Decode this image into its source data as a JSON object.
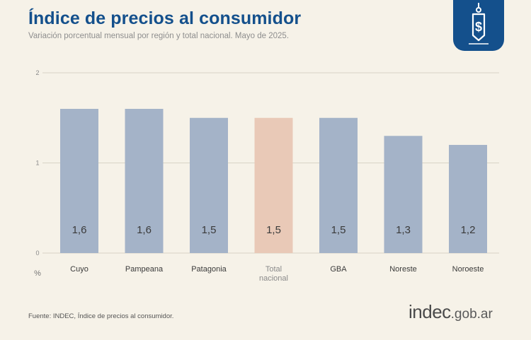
{
  "header": {
    "title": "Índice de precios al consumidor",
    "subtitle": "Variación porcentual mensual por región y total nacional. Mayo de 2025."
  },
  "icons": {
    "badge": "price-tag-dollar-icon"
  },
  "colors": {
    "bar": "#a4b3c8",
    "highlight": "#e9c9b7",
    "grid": "#d8d3c6",
    "text": "#3a3a3a"
  },
  "chart_data": {
    "type": "bar",
    "categories": [
      "Cuyo",
      "Pampeana",
      "Patagonia",
      "Total nacional",
      "GBA",
      "Noreste",
      "Noroeste"
    ],
    "category_lines": [
      [
        "Cuyo"
      ],
      [
        "Pampeana"
      ],
      [
        "Patagonia"
      ],
      [
        "Total",
        "nacional"
      ],
      [
        "GBA"
      ],
      [
        "Noreste"
      ],
      [
        "Noroeste"
      ]
    ],
    "values": [
      1.6,
      1.6,
      1.5,
      1.5,
      1.5,
      1.3,
      1.2
    ],
    "value_labels": [
      "1,6",
      "1,6",
      "1,5",
      "1,5",
      "1,5",
      "1,3",
      "1,2"
    ],
    "highlight_index": 3,
    "yticks": [
      0,
      1,
      2
    ],
    "ytick_labels": [
      "0",
      "1",
      "2"
    ],
    "ylabel": "%",
    "ylim": [
      0,
      2
    ],
    "grid": true
  },
  "footer": {
    "source": "Fuente: INDEC, Índice de precios al consumidor.",
    "logo_main": "indec",
    "logo_suffix": ".gob.ar"
  }
}
